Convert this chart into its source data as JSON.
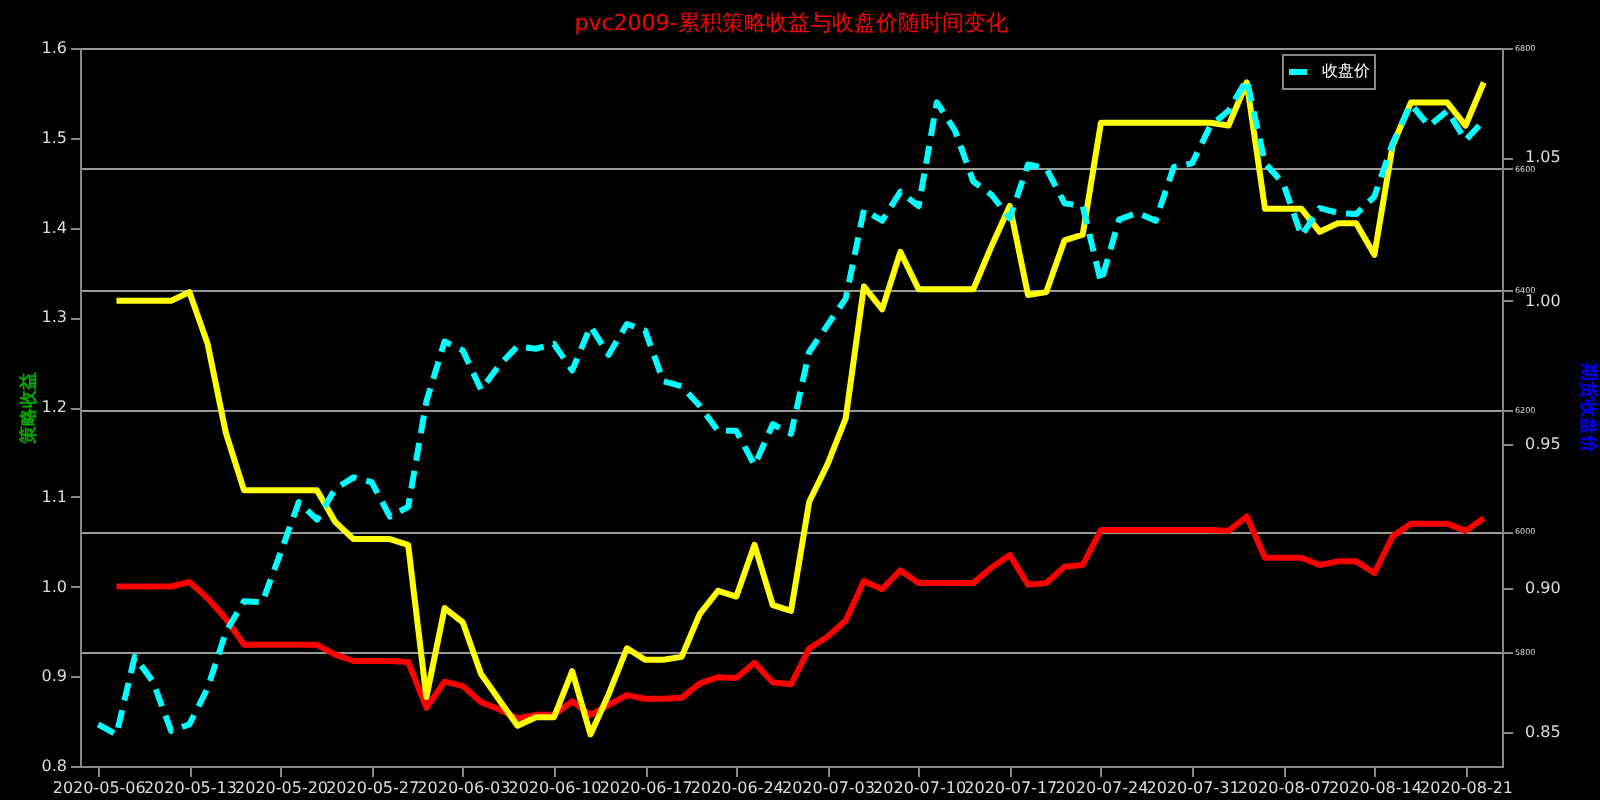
{
  "chart_data": {
    "type": "line",
    "title": "pvc2009-累积策略收益与收盘价随时间变化",
    "ylabel": "策略收益",
    "y3label": "期货收盘价",
    "categories": [
      "2020-05-06",
      null,
      null,
      null,
      null,
      "2020-05-13",
      null,
      null,
      null,
      null,
      "2020-05-20",
      null,
      null,
      null,
      null,
      "2020-05-27",
      null,
      null,
      null,
      null,
      "2020-06-03",
      null,
      null,
      null,
      null,
      "2020-06-10",
      null,
      null,
      null,
      null,
      "2020-06-17",
      null,
      null,
      null,
      null,
      "2020-06-24",
      null,
      null,
      null,
      null,
      "2020-07-03",
      null,
      null,
      null,
      null,
      "2020-07-10",
      null,
      null,
      null,
      null,
      "2020-07-17",
      null,
      null,
      null,
      null,
      "2020-07-24",
      null,
      null,
      null,
      null,
      "2020-07-31",
      null,
      null,
      null,
      null,
      "2020-08-07",
      null,
      null,
      null,
      null,
      "2020-08-14",
      null,
      null,
      null,
      null,
      "2020-08-21",
      null
    ],
    "series": [
      {
        "color": "#ff0000",
        "axis": "y",
        "line_style": "solid",
        "values": [
          null,
          1.0,
          1.0,
          1.0,
          1.0,
          1.005,
          0.987,
          0.964,
          0.935,
          0.935,
          0.935,
          0.935,
          0.935,
          0.924,
          0.917,
          0.917,
          0.917,
          0.916,
          0.865,
          0.894,
          0.889,
          0.871,
          0.863,
          0.853,
          0.857,
          0.857,
          0.872,
          0.857,
          0.868,
          0.879,
          0.875,
          0.875,
          0.876,
          0.892,
          0.899,
          0.898,
          0.915,
          0.893,
          0.891,
          0.931,
          0.944,
          0.962,
          1.006,
          0.997,
          1.018,
          1.004,
          1.004,
          1.004,
          1.004,
          1.021,
          1.035,
          1.002,
          1.004,
          1.022,
          1.024,
          1.063,
          1.063,
          1.063,
          1.063,
          1.063,
          1.063,
          1.063,
          1.062,
          1.078,
          1.032,
          1.032,
          1.032,
          1.024,
          1.028,
          1.028,
          1.015,
          1.056,
          1.07,
          1.07,
          1.07,
          1.062,
          1.076
        ]
      },
      {
        "color": "#ffff00",
        "axis": "y2",
        "line_style": "solid",
        "values": [
          null,
          1.0,
          1.0,
          1.0,
          1.0,
          1.003,
          0.985,
          0.954,
          0.934,
          0.934,
          0.934,
          0.934,
          0.934,
          0.923,
          0.917,
          0.917,
          0.917,
          0.915,
          0.862,
          0.893,
          0.888,
          0.87,
          0.861,
          0.852,
          0.855,
          0.855,
          0.871,
          0.849,
          0.863,
          0.879,
          0.875,
          0.875,
          0.876,
          0.891,
          0.899,
          0.897,
          0.915,
          0.894,
          0.892,
          0.93,
          0.943,
          0.959,
          1.005,
          0.997,
          1.017,
          1.004,
          1.004,
          1.004,
          1.004,
          1.019,
          1.033,
          1.002,
          1.003,
          1.021,
          1.023,
          1.062,
          1.062,
          1.062,
          1.062,
          1.062,
          1.062,
          1.062,
          1.061,
          1.076,
          1.032,
          1.032,
          1.032,
          1.024,
          1.027,
          1.027,
          1.016,
          1.054,
          1.069,
          1.069,
          1.069,
          1.061,
          1.076
        ]
      },
      {
        "name": "收盘价",
        "color": "#00ffff",
        "axis": "y3",
        "line_style": "dashed",
        "values": [
          5680,
          5663,
          5792,
          5751,
          5669,
          5680,
          5740,
          5833,
          5884,
          5882,
          5964,
          6048,
          6019,
          6070,
          6089,
          6081,
          6024,
          6040,
          6215,
          6314,
          6299,
          6234,
          6275,
          6306,
          6302,
          6310,
          6266,
          6339,
          6292,
          6343,
          6332,
          6248,
          6240,
          6207,
          6166,
          6166,
          6109,
          6177,
          6161,
          6297,
          6341,
          6385,
          6532,
          6514,
          6562,
          6538,
          6710,
          6663,
          6579,
          6557,
          6518,
          6607,
          6601,
          6543,
          6538,
          6412,
          6516,
          6527,
          6514,
          6603,
          6609,
          6671,
          6696,
          6748,
          6609,
          6576,
          6489,
          6535,
          6527,
          6525,
          6554,
          6642,
          6707,
          6671,
          6696,
          6647,
          6680
        ]
      }
    ],
    "ylim": [
      0.8,
      1.6
    ],
    "yticks": [
      0.8,
      0.9,
      {
        "value": 1.0,
        "label": "1.0"
      },
      1.1,
      1.2,
      1.3,
      1.4,
      1.5,
      1.6
    ],
    "y2lim": [
      0.838,
      1.088
    ],
    "y2ticks": [
      0.85,
      {
        "value": 0.9,
        "label": "0.90"
      },
      0.95,
      {
        "value": 1.0,
        "label": "1.00"
      },
      1.05
    ],
    "y3lim": [
      5611,
      6800
    ],
    "y3ticks": [
      5800,
      6000,
      6200,
      6400,
      6600,
      6800
    ],
    "grid": "y",
    "legend": "top right"
  }
}
